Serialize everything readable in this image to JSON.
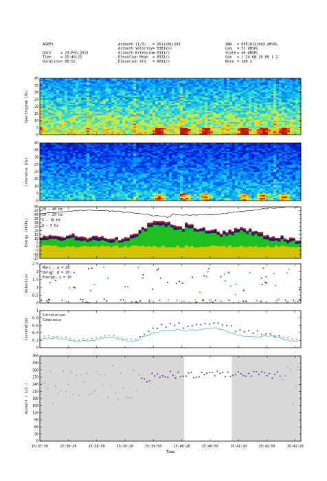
{
  "header": {
    "col1": [
      {
        "k": "AGEE1",
        "v": ""
      },
      {
        "k": "",
        "v": ""
      },
      {
        "k": "Date",
        "v": "= 23-Feb-2015"
      },
      {
        "k": "Time",
        "v": "= 15:40:25"
      },
      {
        "k": "Duration",
        "v": "= 00:52"
      }
    ],
    "col2": [
      {
        "k": "Azimuth (1/3)",
        "v": "= 261|281|293"
      },
      {
        "k": "Azimuth Velocity",
        "v": "= 0381V/s"
      },
      {
        "k": "Azimuth Extension",
        "v": "= 0331/s"
      },
      {
        "k": "Elevation Mean",
        "v": "= 0531/s"
      },
      {
        "k": "Elevation Std",
        "v": "= 0091/s"
      }
    ],
    "col3": [
      {
        "k": "SNR",
        "v": "= 055|012|043 dBSPL"
      },
      {
        "k": "Leq",
        "v": "= 52 dBSPL"
      },
      {
        "k": "Scale",
        "v": "= 46 dBSPL"
      },
      {
        "k": "Gab",
        "v": "= [ 24 68 10 00 ] 2"
      },
      {
        "k": "Note",
        "v": "= 100 2"
      }
    ]
  },
  "colors": {
    "frame": "#000000",
    "green": "#1fbf1f",
    "yellow": "#d6c400",
    "navy": "#191970",
    "red": "#b22222",
    "corr": "#5a2a9a",
    "coh": "#4fb0c8",
    "azgray": "#d8d8d8",
    "azdots_gray": "#a0a0a0",
    "azdots_col": "#5a2aa0"
  },
  "chart_data": [
    {
      "type": "heatmap",
      "ylabel": "Spectrogram (Hz)",
      "ylim": [
        0,
        40
      ],
      "yticks": [
        "0",
        "5",
        "10",
        "15",
        "20",
        "25",
        "30",
        "35",
        "40"
      ]
    },
    {
      "type": "heatmap",
      "ylabel": "Coherence (Hz)",
      "ylim": [
        0,
        40
      ],
      "yticks": [
        "0",
        "5",
        "10",
        "15",
        "20",
        "25",
        "30",
        "35",
        "40"
      ]
    },
    {
      "type": "area",
      "ylabel": "Energy (dBSPL)",
      "ylim": [
        -15,
        50
      ],
      "yticks": [
        "-15",
        "-10",
        "-5",
        "0",
        "5",
        "10",
        "15",
        "20",
        "25",
        "30",
        "35",
        "40",
        "45",
        "50"
      ],
      "legend": [
        "20 — 40 Hz",
        "10 — 20 Hz",
        "5 — 10 Hz",
        "0 — 5 Hz"
      ]
    },
    {
      "type": "scatter",
      "ylabel": "Detection",
      "ylim": [
        0,
        2.5
      ],
      "yticks": [
        "0",
        "0.5",
        "1",
        "1.5",
        "2",
        "2.5"
      ],
      "legend": [
        "Mars : α = 20",
        "Delay: β = 20",
        "Energy: γ = 10"
      ]
    },
    {
      "type": "line",
      "ylabel": "Correlation",
      "ylim": [
        0,
        1
      ],
      "yticks": [
        "0",
        "0.2",
        "0.4",
        "0.6",
        "0.8",
        "1"
      ],
      "legend": [
        "Correlation",
        "Coherence"
      ]
    },
    {
      "type": "scatter",
      "ylabel": "Azimuth ( 1/1 )",
      "xlabel": "Time",
      "ylim": [
        0,
        360
      ],
      "yticks": [
        "0",
        "30",
        "60",
        "90",
        "120",
        "150",
        "180",
        "210",
        "240",
        "270",
        "300",
        "330",
        "360"
      ],
      "xticks": [
        "15:37:50",
        "15:38:20",
        "15:38:50",
        "15:39:20",
        "15:39:50",
        "15:40:20",
        "15:40:50",
        "15:41:20",
        "15:41:50",
        "15:42:20"
      ]
    }
  ]
}
